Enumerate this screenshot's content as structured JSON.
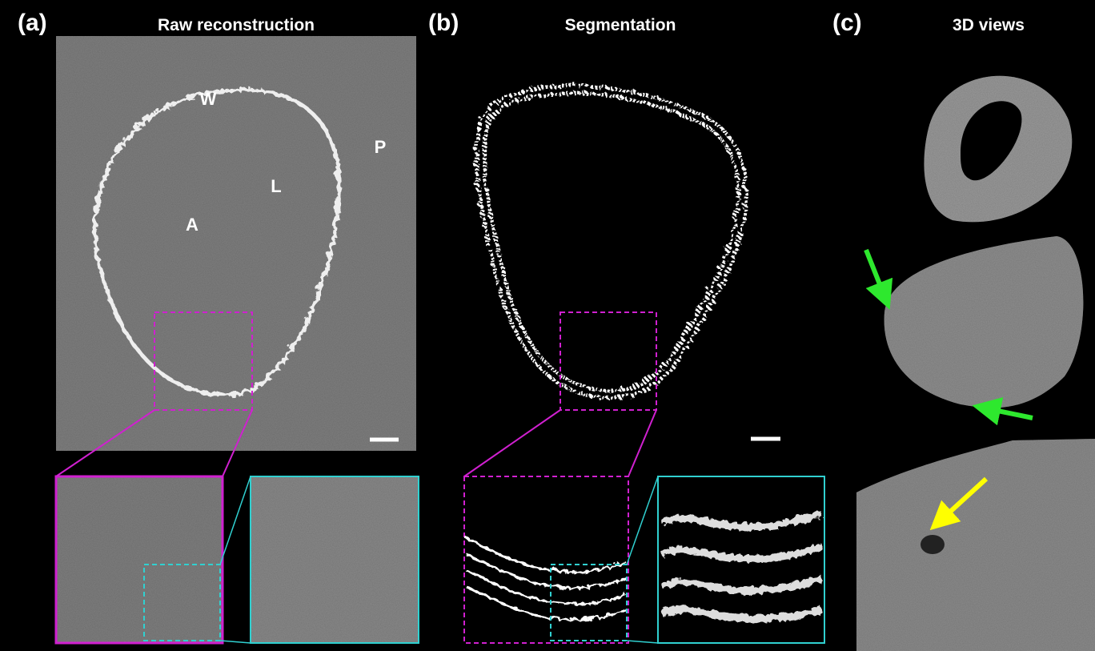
{
  "panels": [
    {
      "label": "(a)",
      "title": "Raw reconstruction",
      "annotations": [
        "W",
        "L",
        "A",
        "P"
      ]
    },
    {
      "label": "(b)",
      "title": "Segmentation"
    },
    {
      "label": "(c)",
      "title": "3D views"
    }
  ]
}
